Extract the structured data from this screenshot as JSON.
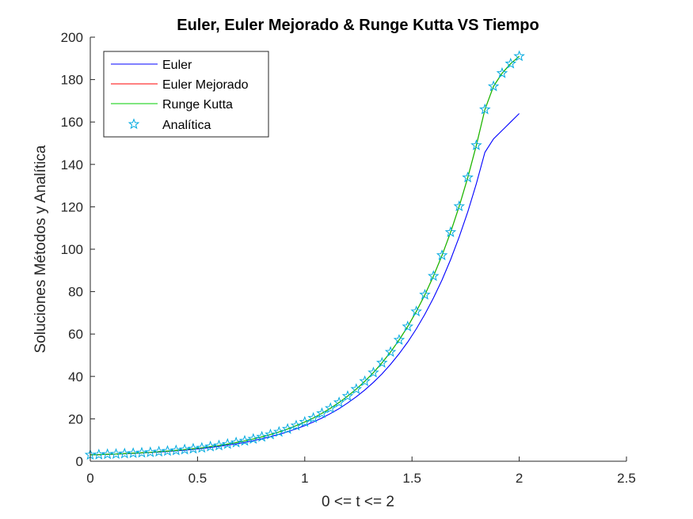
{
  "chart_data": {
    "type": "line",
    "title": "Euler, Euler Mejorado & Runge Kutta VS Tiempo",
    "xlabel": "0 <= t <= 2",
    "ylabel": "Soluciones Métodos y Analítica",
    "xlim": [
      0,
      2.5
    ],
    "ylim": [
      0,
      200
    ],
    "x_ticks": [
      "0",
      "0.5",
      "1",
      "1.5",
      "2",
      "2.5"
    ],
    "y_ticks": [
      "0",
      "20",
      "40",
      "60",
      "80",
      "100",
      "120",
      "140",
      "160",
      "180",
      "200"
    ],
    "x_tick_values": [
      0,
      0.5,
      1,
      1.5,
      2,
      2.5
    ],
    "y_tick_values": [
      0,
      20,
      40,
      60,
      80,
      100,
      120,
      140,
      160,
      180,
      200
    ],
    "grid": false,
    "legend_position": "top-left",
    "x": [
      0.0,
      0.04,
      0.08,
      0.12,
      0.16,
      0.2,
      0.24,
      0.28,
      0.32,
      0.36,
      0.4,
      0.44,
      0.48,
      0.52,
      0.56,
      0.6,
      0.64,
      0.68,
      0.72,
      0.76,
      0.8,
      0.84,
      0.88,
      0.92,
      0.96,
      1.0,
      1.04,
      1.08,
      1.12,
      1.16,
      1.2,
      1.24,
      1.28,
      1.32,
      1.36,
      1.4,
      1.44,
      1.48,
      1.52,
      1.56,
      1.6,
      1.64,
      1.68,
      1.72,
      1.76,
      1.8,
      1.84,
      1.88,
      1.92,
      1.96,
      2.0
    ],
    "series": [
      {
        "name": "Euler",
        "color": "#0000ff",
        "style": "line",
        "values": [
          3.0,
          3.1,
          3.2,
          3.4,
          3.5,
          3.7,
          3.9,
          4.1,
          4.3,
          4.6,
          4.9,
          5.2,
          5.6,
          6.0,
          6.5,
          7.0,
          7.6,
          8.2,
          8.9,
          9.7,
          10.6,
          11.6,
          12.7,
          13.9,
          15.3,
          16.8,
          18.5,
          20.4,
          22.5,
          24.8,
          27.5,
          30.4,
          33.6,
          37.2,
          41.2,
          45.7,
          50.7,
          56.2,
          62.4,
          69.3,
          77.0,
          85.5,
          95.1,
          105.8,
          117.6,
          130.9,
          145.7,
          152.0,
          156.0,
          160.0,
          164.0
        ]
      },
      {
        "name": "Euler Mejorado",
        "color": "#ff0000",
        "style": "line",
        "values": [
          3.0,
          3.1,
          3.3,
          3.4,
          3.6,
          3.8,
          4.0,
          4.2,
          4.5,
          4.8,
          5.1,
          5.5,
          5.9,
          6.3,
          6.9,
          7.4,
          8.1,
          8.8,
          9.6,
          10.5,
          11.5,
          12.6,
          13.8,
          15.2,
          16.8,
          18.5,
          20.4,
          22.6,
          25.0,
          27.7,
          30.7,
          34.0,
          37.7,
          41.8,
          46.4,
          51.5,
          57.2,
          63.5,
          70.6,
          78.5,
          87.3,
          97.1,
          108.0,
          120.2,
          133.8,
          149.0,
          165.9,
          176.8,
          183.0,
          187.5,
          191.0
        ]
      },
      {
        "name": "Runge Kutta",
        "color": "#00cc00",
        "style": "line",
        "values": [
          3.0,
          3.1,
          3.3,
          3.4,
          3.6,
          3.8,
          4.0,
          4.2,
          4.5,
          4.8,
          5.1,
          5.5,
          5.9,
          6.3,
          6.9,
          7.4,
          8.1,
          8.8,
          9.6,
          10.5,
          11.5,
          12.6,
          13.8,
          15.2,
          16.8,
          18.5,
          20.4,
          22.6,
          25.0,
          27.7,
          30.7,
          34.0,
          37.7,
          41.8,
          46.4,
          51.5,
          57.2,
          63.5,
          70.6,
          78.5,
          87.3,
          97.1,
          108.0,
          120.2,
          133.8,
          149.0,
          165.9,
          176.8,
          183.0,
          187.5,
          191.0
        ]
      },
      {
        "name": "Analítica",
        "color": "#00a9e0",
        "style": "markers",
        "marker": "star",
        "values": [
          3.0,
          3.1,
          3.3,
          3.4,
          3.6,
          3.8,
          4.0,
          4.2,
          4.5,
          4.8,
          5.1,
          5.5,
          5.9,
          6.3,
          6.9,
          7.4,
          8.1,
          8.8,
          9.6,
          10.5,
          11.5,
          12.6,
          13.8,
          15.2,
          16.8,
          18.5,
          20.4,
          22.6,
          25.0,
          27.7,
          30.7,
          34.0,
          37.7,
          41.8,
          46.4,
          51.5,
          57.2,
          63.5,
          70.6,
          78.5,
          87.3,
          97.1,
          108.0,
          120.2,
          133.8,
          149.0,
          165.9,
          176.8,
          183.0,
          187.5,
          191.0
        ]
      }
    ]
  }
}
